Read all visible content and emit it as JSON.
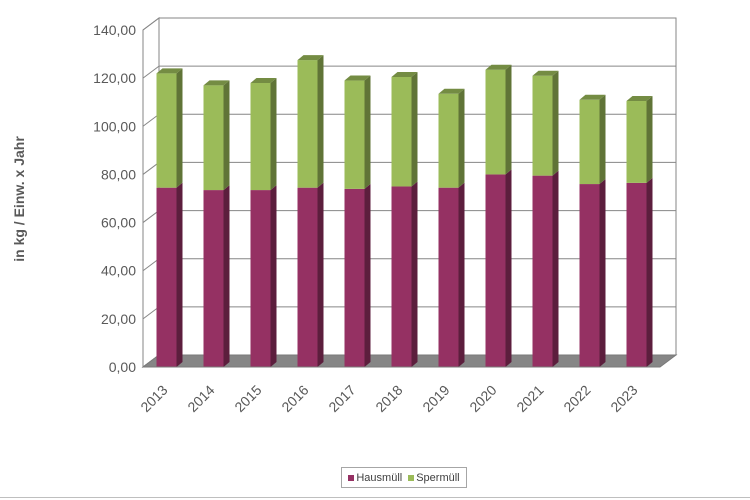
{
  "chart_data": {
    "type": "bar",
    "stacked": true,
    "three_d": true,
    "categories": [
      "2013",
      "2014",
      "2015",
      "2016",
      "2017",
      "2018",
      "2019",
      "2020",
      "2021",
      "2022",
      "2023"
    ],
    "series": [
      {
        "name": "Hausmüll",
        "color": "#953163",
        "values": [
          74.5,
          73.5,
          73.5,
          74.5,
          74.0,
          75.0,
          74.5,
          80.0,
          79.5,
          76.0,
          76.5
        ]
      },
      {
        "name": "Spermüll",
        "color": "#9bbb59",
        "values": [
          47.5,
          43.5,
          44.5,
          53.0,
          45.0,
          45.5,
          39.0,
          43.5,
          41.5,
          35.0,
          34.0
        ]
      }
    ],
    "ylabel": "in kg / Einw. x Jahr",
    "ylim": [
      0,
      140
    ],
    "yticks": [
      "0,00",
      "20,00",
      "40,00",
      "60,00",
      "80,00",
      "100,00",
      "120,00",
      "140,00"
    ],
    "grid": true,
    "legend_position": "bottom"
  }
}
